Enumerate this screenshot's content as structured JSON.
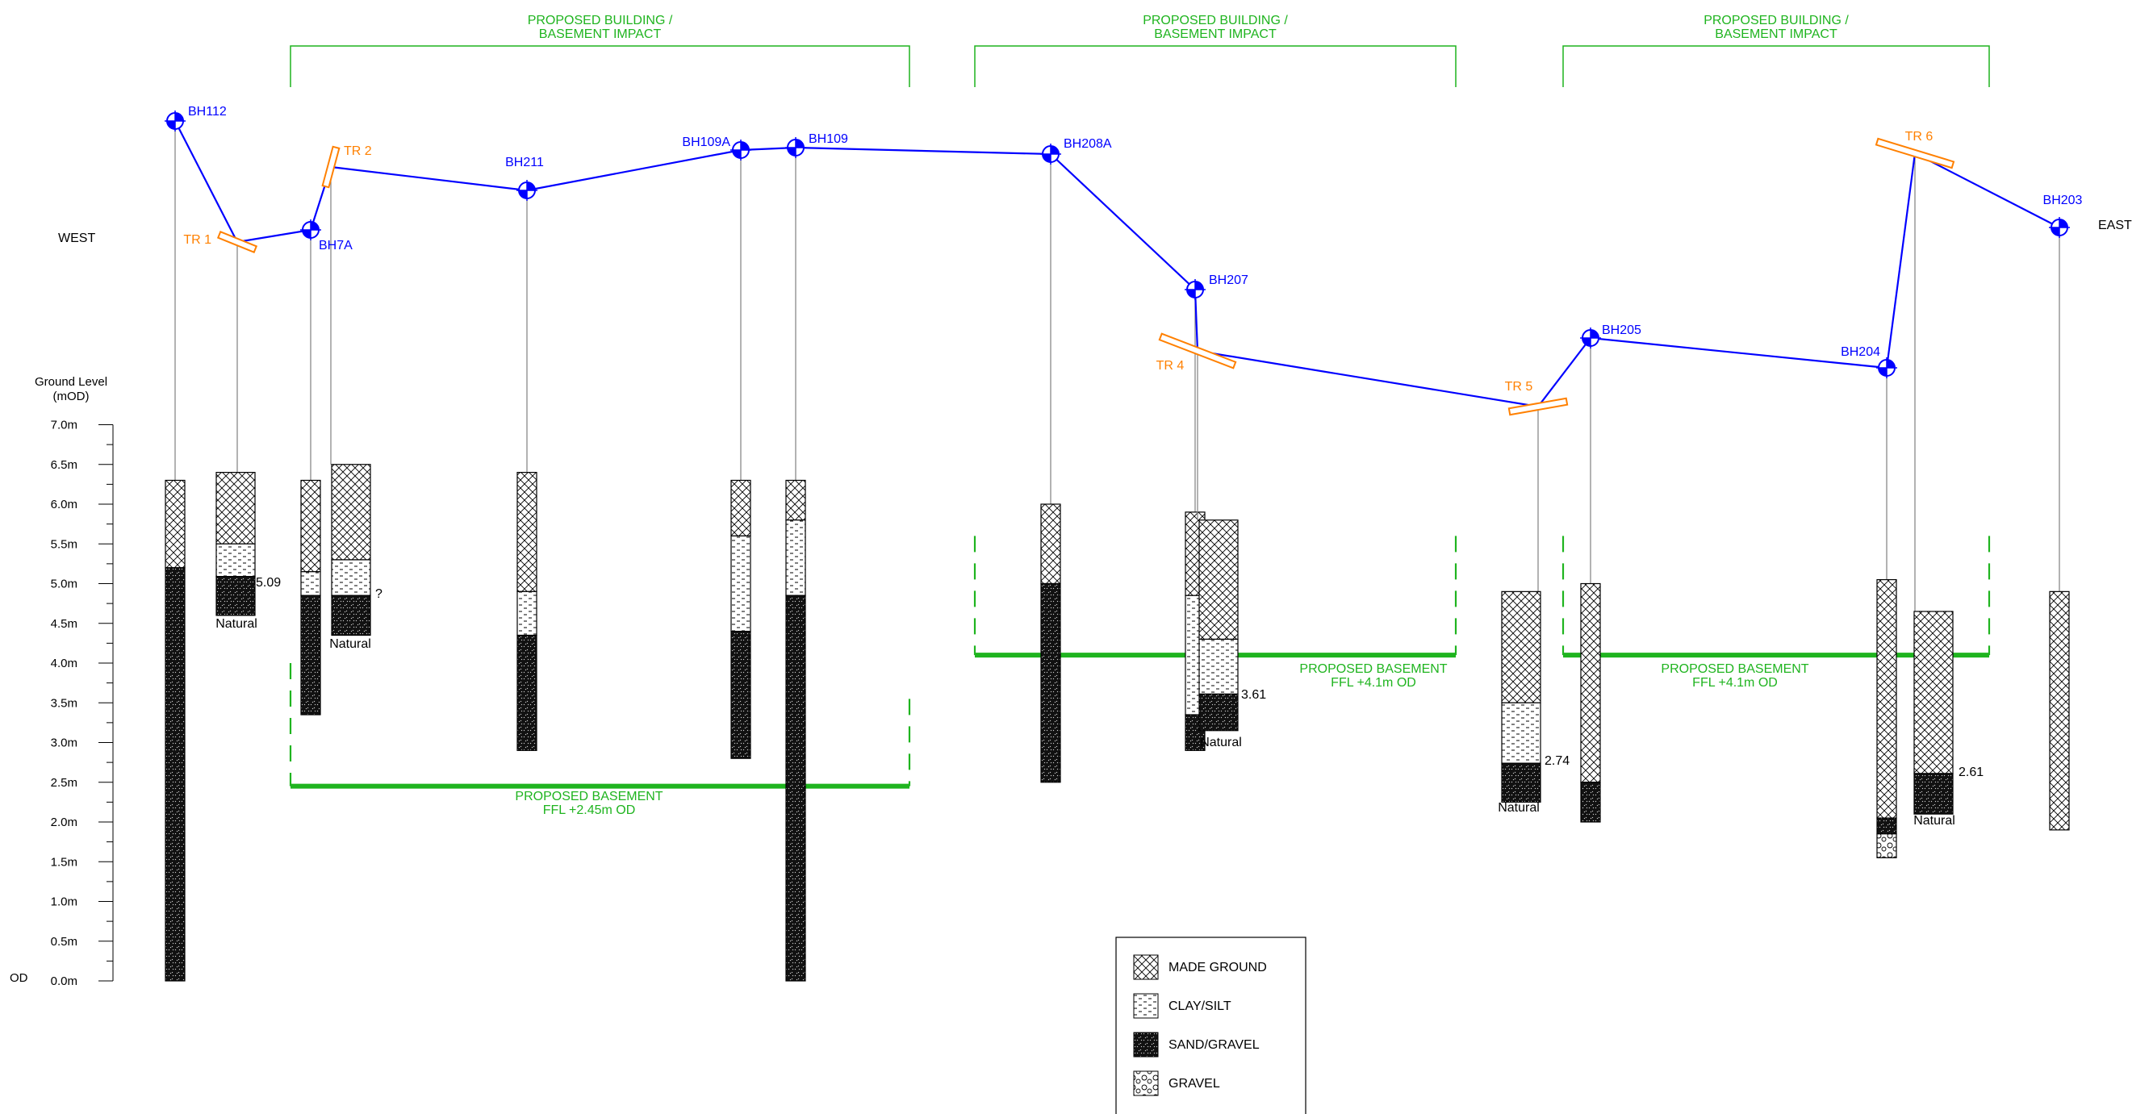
{
  "labels": {
    "west": "WEST",
    "east": "EAST",
    "ground_level_title": "Ground Level",
    "ground_level_unit": "(mOD)",
    "od": "OD",
    "natural": "Natural"
  },
  "axis": {
    "ticks": [
      "0.0m",
      "0.5m",
      "1.0m",
      "1.5m",
      "2.0m",
      "2.5m",
      "3.0m",
      "3.5m",
      "4.0m",
      "4.5m",
      "5.0m",
      "5.5m",
      "6.0m",
      "6.5m",
      "7.0m"
    ]
  },
  "zones": [
    {
      "title_line1": "PROPOSED BUILDING /",
      "title_line2": "BASEMENT IMPACT",
      "basement_line1": "PROPOSED BASEMENT",
      "basement_line2": "FFL +2.45m OD",
      "ffl": 2.45
    },
    {
      "title_line1": "PROPOSED BUILDING /",
      "title_line2": "BASEMENT IMPACT",
      "basement_line1": "PROPOSED BASEMENT",
      "basement_line2": "FFL +4.1m OD",
      "ffl": 4.1
    },
    {
      "title_line1": "PROPOSED BUILDING /",
      "title_line2": "BASEMENT IMPACT",
      "basement_line1": "PROPOSED BASEMENT",
      "basement_line2": "FFL +4.1m OD",
      "ffl": 4.1
    }
  ],
  "boreholes": [
    {
      "name": "BH112",
      "top": 6.3,
      "layers": [
        {
          "material": "made",
          "from": 6.3,
          "to": 5.2
        },
        {
          "material": "sand",
          "from": 5.2,
          "to": 0.0
        }
      ]
    },
    {
      "name": "BH7A",
      "top": 6.3,
      "layers": [
        {
          "material": "made",
          "from": 6.3,
          "to": 5.15
        },
        {
          "material": "clay",
          "from": 5.15,
          "to": 4.85
        },
        {
          "material": "sand",
          "from": 4.85,
          "to": 3.35
        }
      ]
    },
    {
      "name": "BH211",
      "top": 6.4,
      "layers": [
        {
          "material": "made",
          "from": 6.4,
          "to": 4.9
        },
        {
          "material": "clay",
          "from": 4.9,
          "to": 4.35
        },
        {
          "material": "sand",
          "from": 4.35,
          "to": 2.9
        }
      ]
    },
    {
      "name": "BH109A",
      "top": 6.3,
      "layers": [
        {
          "material": "made",
          "from": 6.3,
          "to": 5.6
        },
        {
          "material": "clay",
          "from": 5.6,
          "to": 4.4
        },
        {
          "material": "sand",
          "from": 4.4,
          "to": 2.8
        }
      ]
    },
    {
      "name": "BH109",
      "top": 6.3,
      "layers": [
        {
          "material": "made",
          "from": 6.3,
          "to": 5.8
        },
        {
          "material": "clay",
          "from": 5.8,
          "to": 4.85
        },
        {
          "material": "sand",
          "from": 4.85,
          "to": 0.0
        }
      ]
    },
    {
      "name": "BH208A",
      "top": 6.0,
      "layers": [
        {
          "material": "made",
          "from": 6.0,
          "to": 5.0
        },
        {
          "material": "sand",
          "from": 5.0,
          "to": 2.5
        }
      ]
    },
    {
      "name": "BH207",
      "top": 5.9,
      "layers": [
        {
          "material": "made",
          "from": 5.9,
          "to": 4.85
        },
        {
          "material": "clay",
          "from": 4.85,
          "to": 3.35
        },
        {
          "material": "sand",
          "from": 3.35,
          "to": 2.9
        }
      ]
    },
    {
      "name": "BH205",
      "top": 5.0,
      "layers": [
        {
          "material": "made",
          "from": 5.0,
          "to": 2.5
        },
        {
          "material": "sand",
          "from": 2.5,
          "to": 2.0
        }
      ]
    },
    {
      "name": "BH204",
      "top": 5.05,
      "layers": [
        {
          "material": "made",
          "from": 5.05,
          "to": 2.05
        },
        {
          "material": "sand",
          "from": 2.05,
          "to": 1.85
        },
        {
          "material": "gravel",
          "from": 1.85,
          "to": 1.55
        }
      ]
    },
    {
      "name": "BH203",
      "top": 4.9,
      "layers": [
        {
          "material": "made",
          "from": 4.9,
          "to": 1.9
        }
      ]
    }
  ],
  "trial_pits": [
    {
      "name": "TR 1",
      "top": 6.4,
      "natural_label": "Natural",
      "level_label": "5.09",
      "layers": [
        {
          "material": "made",
          "from": 6.4,
          "to": 5.5
        },
        {
          "material": "clay",
          "from": 5.5,
          "to": 5.09
        },
        {
          "material": "sand",
          "from": 5.09,
          "to": 4.6
        }
      ]
    },
    {
      "name": "TR 2",
      "top": 6.5,
      "natural_label": "Natural",
      "level_label": "?",
      "layers": [
        {
          "material": "made",
          "from": 6.5,
          "to": 5.3
        },
        {
          "material": "clay",
          "from": 5.3,
          "to": 4.85
        },
        {
          "material": "sand",
          "from": 4.85,
          "to": 4.35
        }
      ]
    },
    {
      "name": "TR 4",
      "top": 5.8,
      "natural_label": "Natural",
      "level_label": "3.61",
      "layers": [
        {
          "material": "made",
          "from": 5.8,
          "to": 4.3
        },
        {
          "material": "clay",
          "from": 4.3,
          "to": 3.61
        },
        {
          "material": "sand",
          "from": 3.61,
          "to": 3.15
        }
      ]
    },
    {
      "name": "TR 5",
      "top": 4.9,
      "natural_label": "Natural",
      "level_label": "2.74",
      "layers": [
        {
          "material": "made",
          "from": 4.9,
          "to": 3.5
        },
        {
          "material": "clay",
          "from": 3.5,
          "to": 2.74
        },
        {
          "material": "sand",
          "from": 2.74,
          "to": 2.25
        }
      ]
    },
    {
      "name": "TR 6",
      "top": 4.65,
      "natural_label": "Natural",
      "level_label": "2.61",
      "layers": [
        {
          "material": "made",
          "from": 4.65,
          "to": 2.61
        },
        {
          "material": "sand",
          "from": 2.61,
          "to": 2.1
        }
      ]
    }
  ],
  "legend": [
    {
      "material": "made",
      "label": "MADE GROUND"
    },
    {
      "material": "clay",
      "label": "CLAY/SILT"
    },
    {
      "material": "sand",
      "label": "SAND/GRAVEL"
    },
    {
      "material": "gravel",
      "label": "GRAVEL"
    }
  ],
  "colors": {
    "borehole": "#0000ff",
    "trial_pit": "#ff8000",
    "proposal": "#1fb41f",
    "outline": "#000000",
    "guide": "#808080"
  }
}
